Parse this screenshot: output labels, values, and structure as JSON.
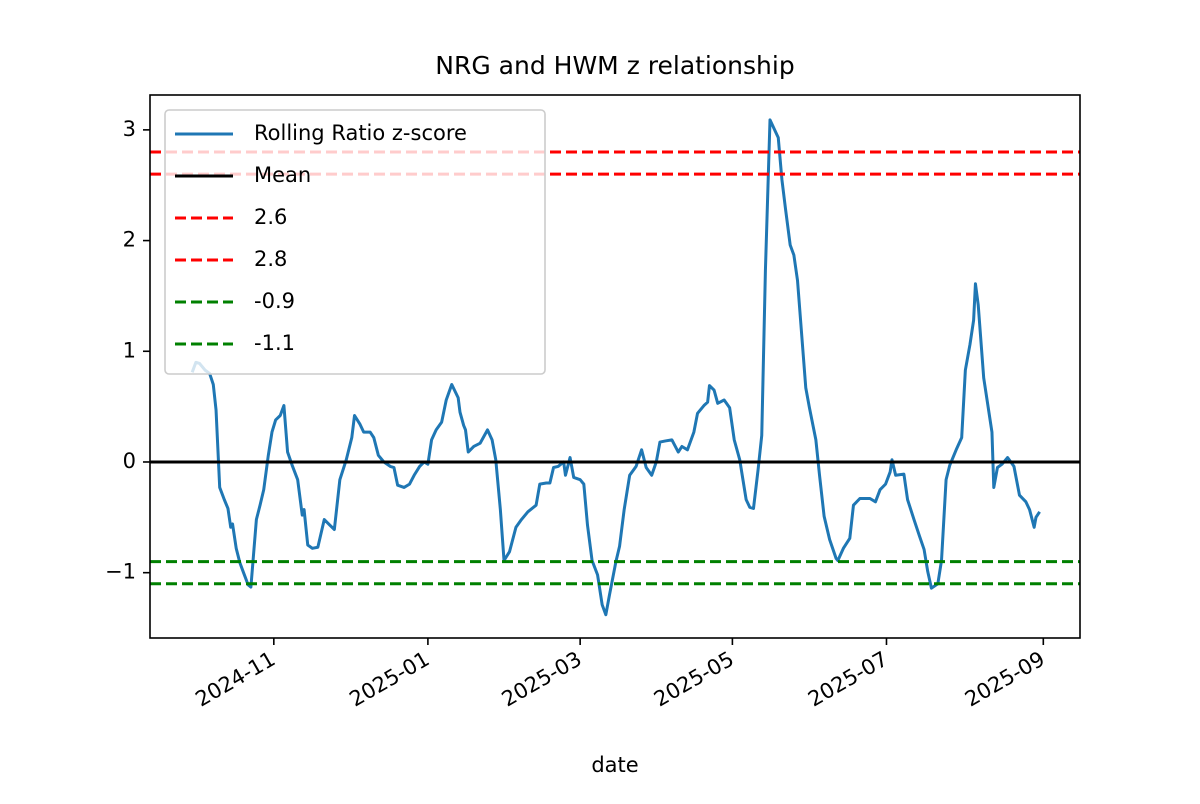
{
  "chart_data": {
    "type": "line",
    "title": "NRG and HWM z relationship",
    "x_label": "date",
    "xlim": [
      2024.699,
      2025.713
    ],
    "xticks": [
      {
        "value": 2024.834,
        "label": "2024-11"
      },
      {
        "value": 2025.002,
        "label": "2025-01"
      },
      {
        "value": 2025.168,
        "label": "2025-03"
      },
      {
        "value": 2025.334,
        "label": "2025-05"
      },
      {
        "value": 2025.502,
        "label": "2025-07"
      },
      {
        "value": 2025.673,
        "label": "2025-09"
      }
    ],
    "ylim": [
      -1.59,
      3.315
    ],
    "yticks": [
      {
        "value": -1,
        "label": "−1"
      },
      0,
      1,
      2,
      3
    ],
    "grid": false,
    "legend": "upper left",
    "series": [
      {
        "name": "Rolling Ratio z-score",
        "color": "#1f77b4",
        "x": [
          2024.745,
          2024.749,
          2024.753,
          2024.759,
          2024.764,
          2024.768,
          2024.771,
          2024.775,
          2024.78,
          2024.784,
          2024.787,
          2024.789,
          2024.793,
          2024.797,
          2024.801,
          2024.806,
          2024.809,
          2024.815,
          2024.819,
          2024.823,
          2024.828,
          2024.832,
          2024.836,
          2024.841,
          2024.845,
          2024.849,
          2024.854,
          2024.86,
          2024.865,
          2024.867,
          2024.871,
          2024.876,
          2024.882,
          2024.889,
          2024.895,
          2024.9,
          2024.906,
          2024.913,
          2024.919,
          2024.922,
          2024.928,
          2024.932,
          2024.939,
          2024.943,
          2024.948,
          2024.954,
          2024.961,
          2024.965,
          2024.969,
          2024.976,
          2024.982,
          2024.987,
          2024.993,
          2024.998,
          2025.002,
          2025.006,
          2025.011,
          2025.017,
          2025.022,
          2025.028,
          2025.035,
          2025.037,
          2025.041,
          2025.043,
          2025.046,
          2025.052,
          2025.059,
          2025.063,
          2025.067,
          2025.072,
          2025.076,
          2025.081,
          2025.085,
          2025.091,
          2025.098,
          2025.104,
          2025.111,
          2025.12,
          2025.124,
          2025.131,
          2025.135,
          2025.139,
          2025.144,
          2025.15,
          2025.152,
          2025.157,
          2025.161,
          2025.168,
          2025.172,
          2025.176,
          2025.181,
          2025.187,
          2025.192,
          2025.196,
          2025.2,
          2025.207,
          2025.211,
          2025.216,
          2025.222,
          2025.229,
          2025.235,
          2025.24,
          2025.246,
          2025.251,
          2025.255,
          2025.261,
          2025.268,
          2025.275,
          2025.279,
          2025.285,
          2025.292,
          2025.296,
          2025.303,
          2025.307,
          2025.309,
          2025.314,
          2025.318,
          2025.325,
          2025.331,
          2025.336,
          2025.342,
          2025.349,
          2025.353,
          2025.357,
          2025.362,
          2025.366,
          2025.37,
          2025.375,
          2025.384,
          2025.388,
          2025.392,
          2025.397,
          2025.401,
          2025.405,
          2025.414,
          2025.418,
          2025.425,
          2025.429,
          2025.434,
          2025.44,
          2025.447,
          2025.449,
          2025.455,
          2025.462,
          2025.466,
          2025.473,
          2025.479,
          2025.484,
          2025.49,
          2025.495,
          2025.501,
          2025.506,
          2025.508,
          2025.512,
          2025.521,
          2025.525,
          2025.532,
          2025.538,
          2025.543,
          2025.547,
          2025.551,
          2025.558,
          2025.562,
          2025.567,
          2025.571,
          2025.578,
          2025.584,
          2025.588,
          2025.593,
          2025.597,
          2025.599,
          2025.602,
          2025.608,
          2025.617,
          2025.619,
          2025.623,
          2025.628,
          2025.634,
          2025.641,
          2025.647,
          2025.654,
          2025.658,
          2025.663,
          2025.665,
          2025.669
        ],
        "values": [
          0.81,
          0.9,
          0.89,
          0.83,
          0.8,
          0.7,
          0.47,
          -0.23,
          -0.34,
          -0.42,
          -0.59,
          -0.56,
          -0.78,
          -0.91,
          -1.0,
          -1.11,
          -1.13,
          -0.52,
          -0.39,
          -0.25,
          0.06,
          0.27,
          0.38,
          0.42,
          0.51,
          0.09,
          -0.03,
          -0.16,
          -0.48,
          -0.43,
          -0.75,
          -0.78,
          -0.77,
          -0.52,
          -0.57,
          -0.61,
          -0.16,
          0.02,
          0.22,
          0.42,
          0.34,
          0.27,
          0.27,
          0.22,
          0.06,
          0.0,
          -0.04,
          -0.05,
          -0.21,
          -0.23,
          -0.2,
          -0.12,
          -0.04,
          0.0,
          -0.02,
          0.2,
          0.29,
          0.36,
          0.56,
          0.7,
          0.58,
          0.45,
          0.33,
          0.29,
          0.09,
          0.14,
          0.17,
          0.23,
          0.29,
          0.2,
          0.02,
          -0.43,
          -0.89,
          -0.81,
          -0.59,
          -0.52,
          -0.45,
          -0.39,
          -0.2,
          -0.19,
          -0.19,
          -0.05,
          -0.04,
          0.0,
          -0.12,
          0.04,
          -0.14,
          -0.16,
          -0.2,
          -0.57,
          -0.89,
          -1.02,
          -1.29,
          -1.38,
          -1.2,
          -0.9,
          -0.76,
          -0.43,
          -0.12,
          -0.04,
          0.11,
          -0.05,
          -0.12,
          0.0,
          0.18,
          0.19,
          0.2,
          0.09,
          0.14,
          0.11,
          0.27,
          0.44,
          0.51,
          0.54,
          0.69,
          0.65,
          0.53,
          0.56,
          0.49,
          0.2,
          0.02,
          -0.34,
          -0.41,
          -0.42,
          -0.07,
          0.24,
          1.73,
          3.09,
          2.93,
          2.55,
          2.28,
          1.96,
          1.87,
          1.64,
          0.67,
          0.49,
          0.2,
          -0.12,
          -0.49,
          -0.7,
          -0.87,
          -0.89,
          -0.78,
          -0.69,
          -0.39,
          -0.33,
          -0.33,
          -0.33,
          -0.36,
          -0.25,
          -0.2,
          -0.09,
          0.02,
          -0.12,
          -0.11,
          -0.34,
          -0.52,
          -0.67,
          -0.79,
          -0.99,
          -1.14,
          -1.1,
          -0.89,
          -0.16,
          -0.03,
          0.11,
          0.22,
          0.83,
          1.06,
          1.28,
          1.61,
          1.42,
          0.76,
          0.27,
          -0.23,
          -0.05,
          -0.02,
          0.04,
          -0.04,
          -0.3,
          -0.36,
          -0.43,
          -0.59,
          -0.5,
          -0.45
        ]
      }
    ],
    "hlines": [
      {
        "name": "Mean",
        "value": 0,
        "color": "#000000",
        "style": "solid"
      },
      {
        "name": "2.6",
        "value": 2.6,
        "color": "#ff0000",
        "style": "dashed"
      },
      {
        "name": "2.8",
        "value": 2.8,
        "color": "#ff0000",
        "style": "dashed"
      },
      {
        "name": "-0.9",
        "value": -0.9,
        "color": "#008000",
        "style": "dashed"
      },
      {
        "name": "-1.1",
        "value": -1.1,
        "color": "#008000",
        "style": "dashed"
      }
    ]
  }
}
